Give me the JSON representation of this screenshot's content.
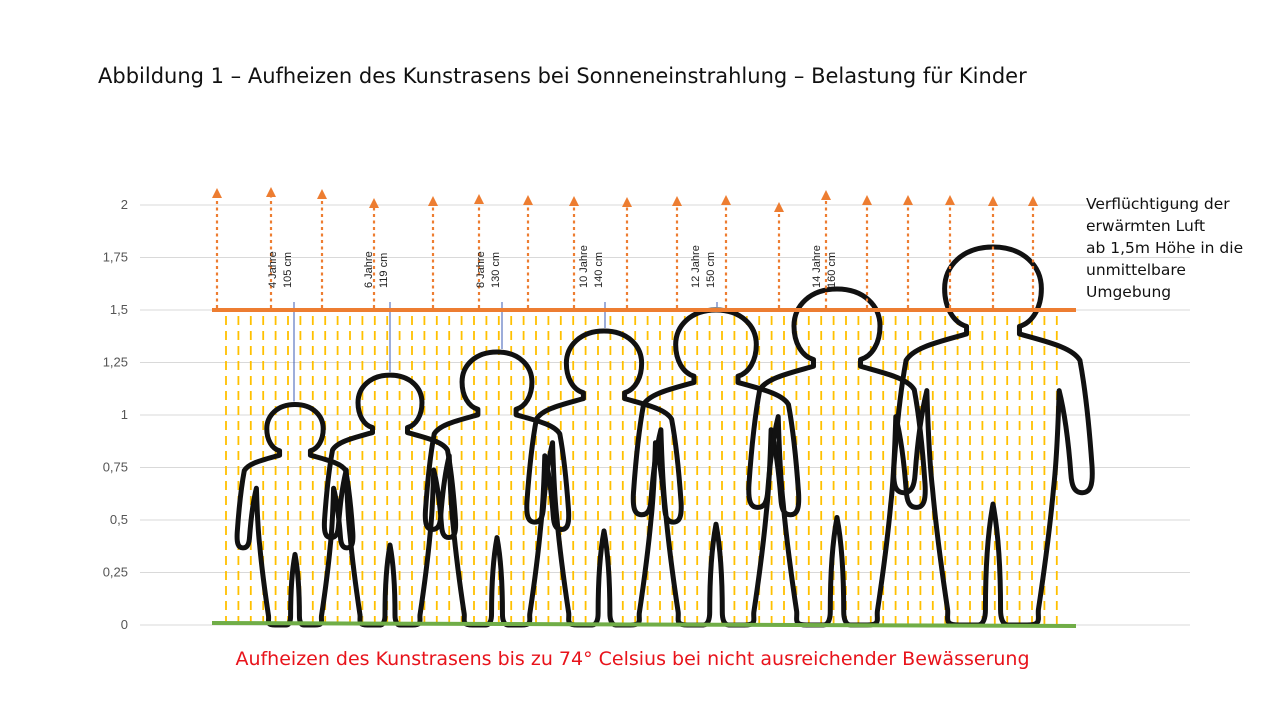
{
  "title": "Abbildung 1 – Aufheizen des Kunstrasens bei Sonneneinstrahlung – Belastung für Kinder",
  "caption": "Aufheizen des Kunstrasens bis zu 74° Celsius bei nicht ausreichender Bewässerung",
  "note_lines": [
    "Verflüchtigung der",
    "erwärmten Luft",
    "ab 1,5m Höhe in die",
    "unmittelbare",
    "Umgebung"
  ],
  "y_axis": {
    "ticks": [
      "0",
      "0,25",
      "0,5",
      "0,75",
      "1",
      "1,25",
      "1,5",
      "1,75",
      "2"
    ],
    "range_m": [
      0,
      2
    ]
  },
  "levels": {
    "hot_air_ceiling_m": 1.5,
    "ground_m": 0
  },
  "figures": [
    {
      "age": "4 Jahre",
      "height": "105 cm",
      "height_m": 1.05
    },
    {
      "age": "6 Jahre",
      "height": "119 cm",
      "height_m": 1.19
    },
    {
      "age": "8 Jahre",
      "height": "130 cm",
      "height_m": 1.3
    },
    {
      "age": "10 Jahre",
      "height": "140 cm",
      "height_m": 1.4
    },
    {
      "age": "12 Jahre",
      "height": "150 cm",
      "height_m": 1.5
    },
    {
      "age": "14 Jahre",
      "height": "160 cm",
      "height_m": 1.6
    },
    {
      "age": "",
      "height": "",
      "height_m": 1.8
    }
  ],
  "colors": {
    "ceiling": "#ed7d31",
    "ground": "#70ad47",
    "heat": "#ffc000",
    "arrow": "#ed7d31",
    "caption": "#e8131b",
    "grid": "#d9d9d9"
  }
}
